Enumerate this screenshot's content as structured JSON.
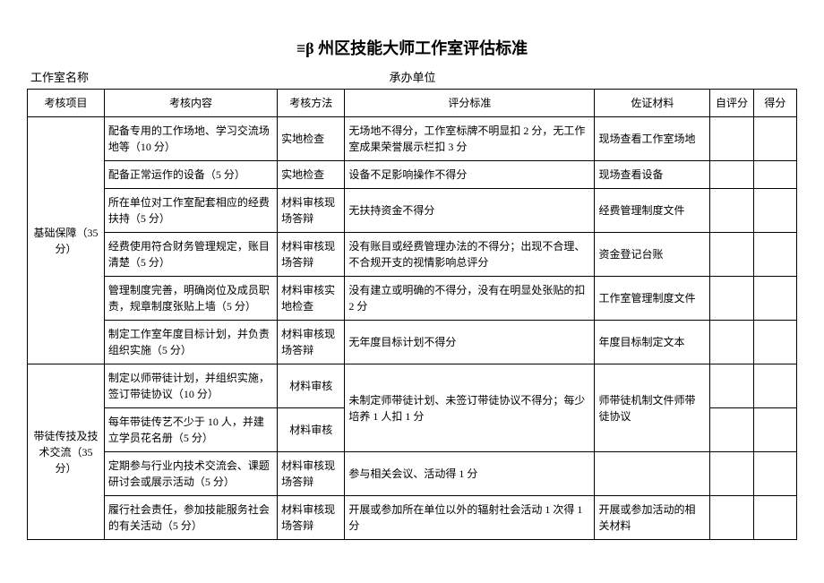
{
  "title": "≡β 州区技能大师工作室评估标准",
  "subtitle": {
    "left_label": "工作室名称",
    "right_label": "承办单位"
  },
  "headers": {
    "project": "考核项目",
    "content": "考核内容",
    "method": "考核方法",
    "standard": "评分标准",
    "material": "佐证材料",
    "self_score": "自评分",
    "score": "得分"
  },
  "sections": [
    {
      "project": "基础保障（35 分）",
      "rows": [
        {
          "content": "配备专用的工作场地、学习交流场地等（10 分）",
          "method": "实地检查",
          "standard": "无场地不得分，工作室标牌不明显扣 2 分，无工作室成果荣誉展示栏扣 3 分",
          "material": "现场查看工作室场地"
        },
        {
          "content": "配备正常运作的设备（5 分）",
          "method": "实地检查",
          "standard": "设备不足影响操作不得分",
          "material": "现场查看设备"
        },
        {
          "content": "所在单位对工作室配套相应的经费扶持（5 分）",
          "method": "材料审核现场答辩",
          "standard": "无扶持资金不得分",
          "material": "经费管理制度文件"
        },
        {
          "content": "经费使用符合财务管理规定，账目清楚（5 分）",
          "method": "材料审核现场答辩",
          "standard": "没有账目或经费管理办法的不得分；出现不合理、不合规开支的视情影响总评分",
          "material": "资金登记台账"
        },
        {
          "content": "管理制度完善，明确岗位及成员职责，规章制度张贴上墙（5 分）",
          "method": "材料审核实地检查",
          "standard": "没有建立或明确的不得分，没有在明显处张贴的扣 2 分",
          "material": "工作室管理制度文件"
        },
        {
          "content": "制定工作室年度目标计划，并负责组织实施（5 分）",
          "method": "材料审核现场答辩",
          "standard": "无年度目标计划不得分",
          "material": "年度目标制定文本"
        }
      ]
    },
    {
      "project": "带徒传技及技术交流（35 分）",
      "rows": [
        {
          "content": "制定以师带徒计划，并组织实施，签订带徒协议（10 分）",
          "method": "材料审核",
          "standard_merge": true,
          "material_merge": true
        },
        {
          "content": "每年带徒传艺不少于 10 人，并建立学员花名册（5 分）",
          "method": "材料审核",
          "standard": "未制定师带徒计划、未签订带徒协议不得分；每少培养 1 人扣 1 分",
          "material": "师带徒机制文件师带徒协议"
        },
        {
          "content": "定期参与行业内技术交流会、课题研讨会或展示活动（5 分）",
          "method": "材料审核现场答辩",
          "standard": "参与相关会议、活动得 1 分",
          "material": ""
        },
        {
          "content": "履行社会责任，参加技能服务社会的有关活动（5 分）",
          "method": "材料审核现场答辩",
          "standard": "开展或参加所在单位以外的辐射社会活动 1 次得 1 分",
          "material": "开展或参加活动的相关材料"
        }
      ]
    }
  ]
}
